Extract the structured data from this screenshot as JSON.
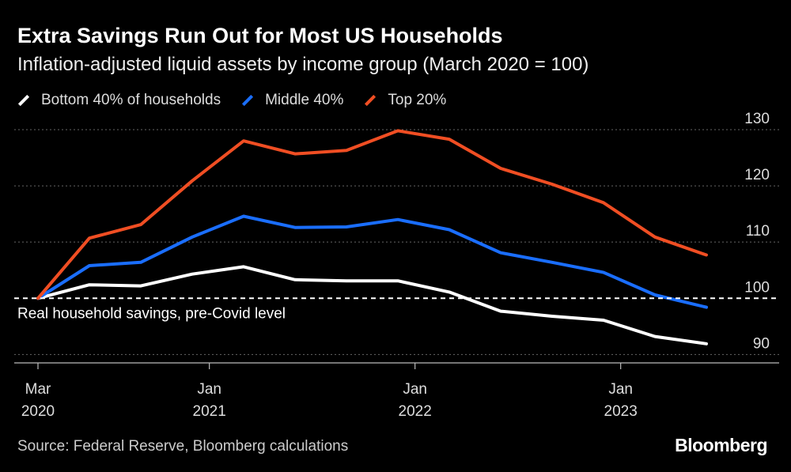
{
  "title": "Extra Savings Run Out for Most US Households",
  "subtitle": "Inflation-adjusted liquid assets by income group (March 2020 = 100)",
  "source": "Source: Federal Reserve, Bloomberg calculations",
  "brand": "Bloomberg",
  "chart_data": {
    "type": "line",
    "title": "Extra Savings Run Out for Most US Households",
    "subtitle": "Inflation-adjusted liquid assets by income group (March 2020 = 100)",
    "x": [
      "2020-03",
      "2020-06",
      "2020-09",
      "2020-12",
      "2021-03",
      "2021-06",
      "2021-09",
      "2021-12",
      "2022-03",
      "2022-06",
      "2022-09",
      "2022-12",
      "2023-03",
      "2023-06"
    ],
    "x_ticks": [
      {
        "x": "2020-03",
        "label": [
          "Mar",
          "2020"
        ]
      },
      {
        "x": "2021-01",
        "label": [
          "Jan",
          "2021"
        ]
      },
      {
        "x": "2022-01",
        "label": [
          "Jan",
          "2022"
        ]
      },
      {
        "x": "2023-01",
        "label": [
          "Jan",
          "2023"
        ]
      }
    ],
    "y_ticks": [
      90,
      100,
      110,
      120,
      130
    ],
    "ylim": [
      88.5,
      130
    ],
    "series": [
      {
        "name": "Bottom 40% of households",
        "color": "#ffffff",
        "values": [
          100,
          102.4,
          102.2,
          104.3,
          105.6,
          103.3,
          103.1,
          103.1,
          101.1,
          97.7,
          96.8,
          96.1,
          93.2,
          91.9
        ]
      },
      {
        "name": "Middle 40%",
        "color": "#1a6eff",
        "values": [
          100,
          105.8,
          106.4,
          110.9,
          114.6,
          112.6,
          112.7,
          114,
          112.2,
          108.1,
          106.4,
          104.6,
          100.6,
          98.4
        ]
      },
      {
        "name": "Top 20%",
        "color": "#f04e23",
        "values": [
          100,
          110.7,
          113.1,
          120.9,
          128,
          125.7,
          126.3,
          129.8,
          128.3,
          123.1,
          120.3,
          117,
          110.9,
          107.7
        ]
      }
    ],
    "reference_line": {
      "y": 100,
      "style": "dashed",
      "label": "Real household savings, pre-Covid level"
    },
    "grid": true,
    "legend": "top-left"
  }
}
